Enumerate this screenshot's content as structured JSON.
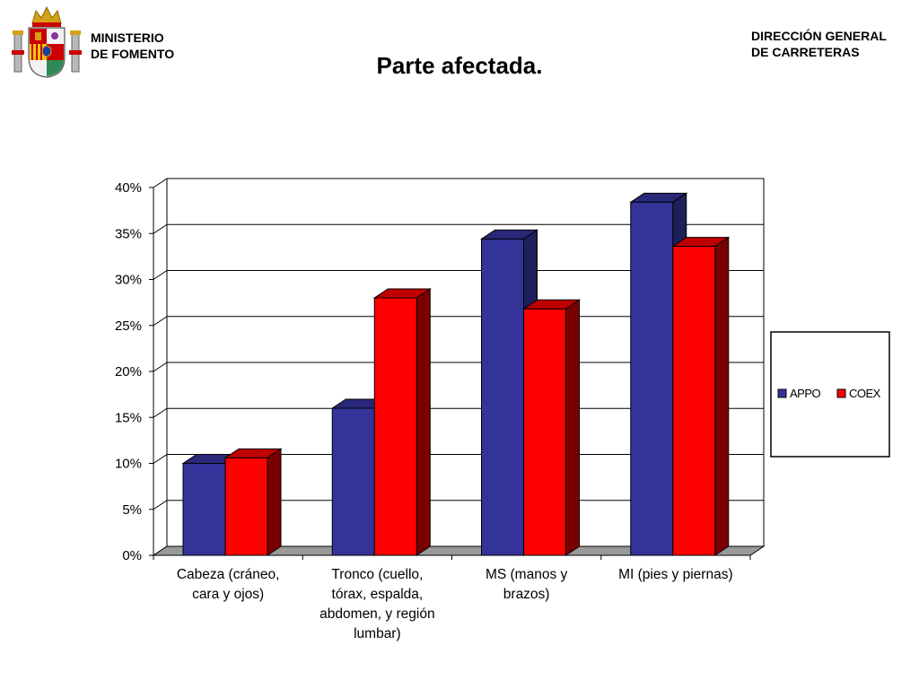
{
  "header": {
    "ministry_line1": "MINISTERIO",
    "ministry_line2": "DE FOMENTO",
    "direccion_line1": "DIRECCIÓN GENERAL",
    "direccion_line2": "DE CARRETERAS",
    "logo_icon": "spain-coat-of-arms-icon"
  },
  "slide": {
    "title": "Parte afectada."
  },
  "chart_data": {
    "type": "bar",
    "title": "",
    "xlabel": "",
    "ylabel": "",
    "categories": [
      [
        "Cabeza (cráneo,",
        "cara y ojos)"
      ],
      [
        "Tronco (cuello,",
        "tórax, espalda,",
        "abdomen, y región",
        "lumbar)"
      ],
      [
        "MS (manos y",
        "brazos)"
      ],
      [
        "MI (pies y piernas)"
      ]
    ],
    "series": [
      {
        "name": "APPO",
        "values": [
          0.1,
          0.16,
          0.344,
          0.384
        ],
        "color": "#333399",
        "side_color": "#1f1f5c",
        "top_color": "#29297a"
      },
      {
        "name": "COEX",
        "values": [
          0.106,
          0.28,
          0.268,
          0.336
        ],
        "color": "#ff0000",
        "side_color": "#7a0000",
        "top_color": "#c00000"
      }
    ],
    "ylim": [
      0,
      0.4
    ],
    "yticks": [
      "0%",
      "5%",
      "10%",
      "15%",
      "20%",
      "25%",
      "30%",
      "35%",
      "40%"
    ],
    "grid": true,
    "legend_position": "right"
  }
}
